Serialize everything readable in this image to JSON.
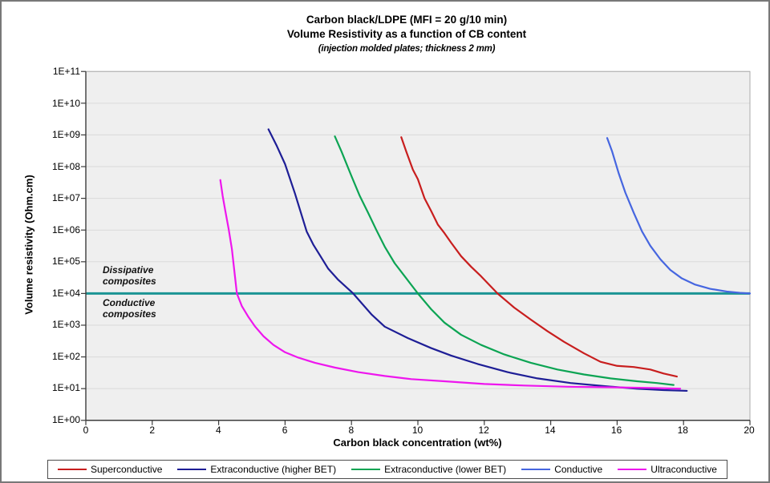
{
  "chart_data": {
    "type": "line",
    "title": "Carbon black/LDPE (MFI = 20 g/10 min)",
    "subtitle": "Volume Resistivity as a function of CB content",
    "note": "(injection molded plates; thickness 2 mm)",
    "xlabel": "Carbon black concentration (wt%)",
    "ylabel": "Volume resistivity (Ohm.cm)",
    "x_scale": "linear",
    "y_scale": "log",
    "xlim": [
      0,
      20
    ],
    "ylim": [
      1,
      100000000000
    ],
    "x_ticks": [
      "0",
      "2",
      "4",
      "6",
      "8",
      "10",
      "12",
      "14",
      "16",
      "18",
      "20"
    ],
    "y_ticks": [
      "1E+00",
      "1E+01",
      "1E+02",
      "1E+03",
      "1E+04",
      "1E+05",
      "1E+06",
      "1E+07",
      "1E+08",
      "1E+09",
      "1E+10",
      "1E+11"
    ],
    "grid": "horizontal",
    "plot_bg": "#EFEFEF",
    "grid_color": "#DADADA",
    "axis_color": "#3C3C3C",
    "legend_position": "bottom",
    "reference_line": {
      "name": "dissipative-conductive-boundary",
      "y": 10000,
      "color": "#1B9494",
      "width": 3
    },
    "annotations": {
      "dissipative": {
        "line1": "Dissipative",
        "line2": "composites"
      },
      "conductive": {
        "line1": "Conductive",
        "line2": "composites"
      }
    },
    "series": [
      {
        "name": "Superconductive",
        "color": "#C81E1E",
        "points": [
          [
            9.5,
            850000000
          ],
          [
            9.65,
            300000000
          ],
          [
            9.85,
            80000000
          ],
          [
            10.0,
            40000000
          ],
          [
            10.2,
            10000000
          ],
          [
            10.4,
            4000000
          ],
          [
            10.6,
            1500000
          ],
          [
            10.8,
            800000
          ],
          [
            11.0,
            400000
          ],
          [
            11.3,
            150000
          ],
          [
            11.6,
            70000
          ],
          [
            11.9,
            35000
          ],
          [
            12.4,
            10000
          ],
          [
            12.9,
            3600
          ],
          [
            13.4,
            1500
          ],
          [
            13.9,
            650
          ],
          [
            14.4,
            300
          ],
          [
            15.0,
            130
          ],
          [
            15.5,
            70
          ],
          [
            16.0,
            52
          ],
          [
            16.5,
            48
          ],
          [
            17.0,
            40
          ],
          [
            17.4,
            30
          ],
          [
            17.8,
            24
          ]
        ]
      },
      {
        "name": "Extraconductive (higher BET)",
        "color": "#1E1E96",
        "points": [
          [
            5.5,
            1500000000
          ],
          [
            5.75,
            450000000
          ],
          [
            6.0,
            120000000
          ],
          [
            6.3,
            14000000
          ],
          [
            6.65,
            900000
          ],
          [
            6.85,
            350000
          ],
          [
            7.05,
            160000
          ],
          [
            7.3,
            60000
          ],
          [
            7.6,
            27000
          ],
          [
            8.05,
            10000
          ],
          [
            8.6,
            2200
          ],
          [
            9.0,
            900
          ],
          [
            9.7,
            390
          ],
          [
            10.4,
            190
          ],
          [
            11.0,
            110
          ],
          [
            11.8,
            60
          ],
          [
            12.7,
            33
          ],
          [
            13.6,
            21
          ],
          [
            14.6,
            15
          ],
          [
            15.6,
            12
          ],
          [
            16.6,
            10
          ],
          [
            17.4,
            9
          ],
          [
            18.1,
            8.5
          ]
        ]
      },
      {
        "name": "Extraconductive (lower BET)",
        "color": "#0CA453",
        "points": [
          [
            7.5,
            900000000
          ],
          [
            7.7,
            300000000
          ],
          [
            8.0,
            50000000
          ],
          [
            8.25,
            12000000
          ],
          [
            8.5,
            3500000
          ],
          [
            8.75,
            1000000
          ],
          [
            9.0,
            300000
          ],
          [
            9.3,
            90000
          ],
          [
            9.6,
            35000
          ],
          [
            10.0,
            10000
          ],
          [
            10.4,
            3200
          ],
          [
            10.8,
            1200
          ],
          [
            11.3,
            500
          ],
          [
            11.9,
            240
          ],
          [
            12.6,
            120
          ],
          [
            13.4,
            65
          ],
          [
            14.2,
            40
          ],
          [
            15.0,
            28
          ],
          [
            15.8,
            21
          ],
          [
            16.6,
            17
          ],
          [
            17.2,
            15
          ],
          [
            17.7,
            13
          ]
        ]
      },
      {
        "name": "Conductive",
        "color": "#4666E0",
        "points": [
          [
            15.7,
            800000000
          ],
          [
            15.85,
            300000000
          ],
          [
            16.05,
            60000000
          ],
          [
            16.25,
            15000000
          ],
          [
            16.5,
            3500000
          ],
          [
            16.75,
            900000
          ],
          [
            17.0,
            320000
          ],
          [
            17.3,
            120000
          ],
          [
            17.6,
            55000
          ],
          [
            17.95,
            30000
          ],
          [
            18.35,
            19000
          ],
          [
            18.8,
            14000
          ],
          [
            19.3,
            11500
          ],
          [
            19.7,
            10500
          ],
          [
            20.0,
            10000
          ]
        ]
      },
      {
        "name": "Ultraconductive",
        "color": "#EE16EE",
        "points": [
          [
            4.05,
            38000000
          ],
          [
            4.12,
            12000000
          ],
          [
            4.2,
            4000000
          ],
          [
            4.3,
            1100000
          ],
          [
            4.4,
            250000
          ],
          [
            4.55,
            10000
          ],
          [
            4.7,
            4000
          ],
          [
            4.9,
            1800
          ],
          [
            5.1,
            900
          ],
          [
            5.35,
            450
          ],
          [
            5.65,
            240
          ],
          [
            6.0,
            140
          ],
          [
            6.4,
            95
          ],
          [
            6.9,
            65
          ],
          [
            7.5,
            46
          ],
          [
            8.2,
            33
          ],
          [
            9.0,
            25
          ],
          [
            9.8,
            20
          ],
          [
            10.8,
            17
          ],
          [
            12.0,
            14
          ],
          [
            13.2,
            12.5
          ],
          [
            14.5,
            11.5
          ],
          [
            15.8,
            11
          ],
          [
            17.0,
            10.5
          ],
          [
            17.9,
            10
          ]
        ]
      }
    ]
  }
}
